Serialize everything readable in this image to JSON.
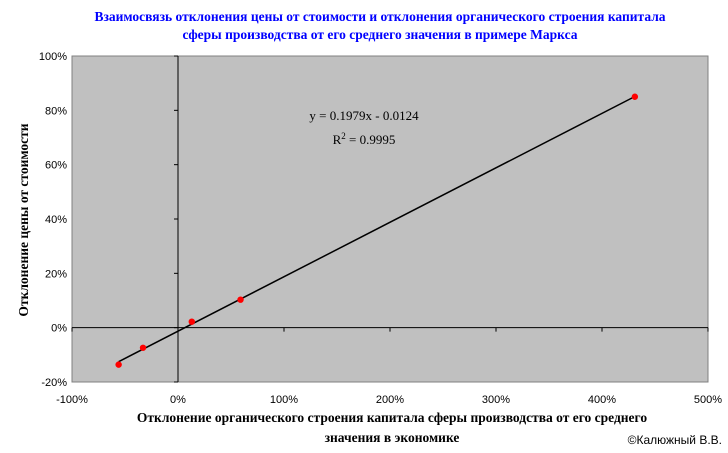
{
  "chart_data": {
    "type": "scatter",
    "title": [
      "Взаимосвязь отклонения цены от стоимости  и отклонения органического строения капитала",
      "сферы производства от его среднего значения в примере Маркса"
    ],
    "x_label": [
      "Отклонение органического строения капитала сферы производства от его среднего",
      "значения в экономике"
    ],
    "y_label": "Отклонение цены от стоимости",
    "x": [
      -56,
      -33,
      13,
      59,
      431
    ],
    "values": [
      -13.6,
      -7.4,
      2.2,
      10.3,
      85
    ],
    "color": "#ff0000",
    "trendline": {
      "color": "#000000",
      "equation": "y = 0.1979x - 0.0124",
      "r2": [
        "R",
        "2",
        " = 0.9995"
      ]
    },
    "xlim": [
      -100,
      500
    ],
    "xticks": [
      {
        "value": -100,
        "label": "-100%"
      },
      {
        "value": 0,
        "label": "0%"
      },
      {
        "value": 100,
        "label": "100%"
      },
      {
        "value": 200,
        "label": "200%"
      },
      {
        "value": 300,
        "label": "300%"
      },
      {
        "value": 400,
        "label": "400%"
      },
      {
        "value": 500,
        "label": "500%"
      }
    ],
    "ylim": [
      -20,
      100
    ],
    "yticks": [
      {
        "value": -20,
        "label": "-20%"
      },
      {
        "value": 0,
        "label": "0%"
      },
      {
        "value": 20,
        "label": "20%"
      },
      {
        "value": 40,
        "label": "40%"
      },
      {
        "value": 60,
        "label": "60%"
      },
      {
        "value": 80,
        "label": "80%"
      },
      {
        "value": 100,
        "label": "100%"
      }
    ],
    "credit": "©Калюжный В.В."
  }
}
